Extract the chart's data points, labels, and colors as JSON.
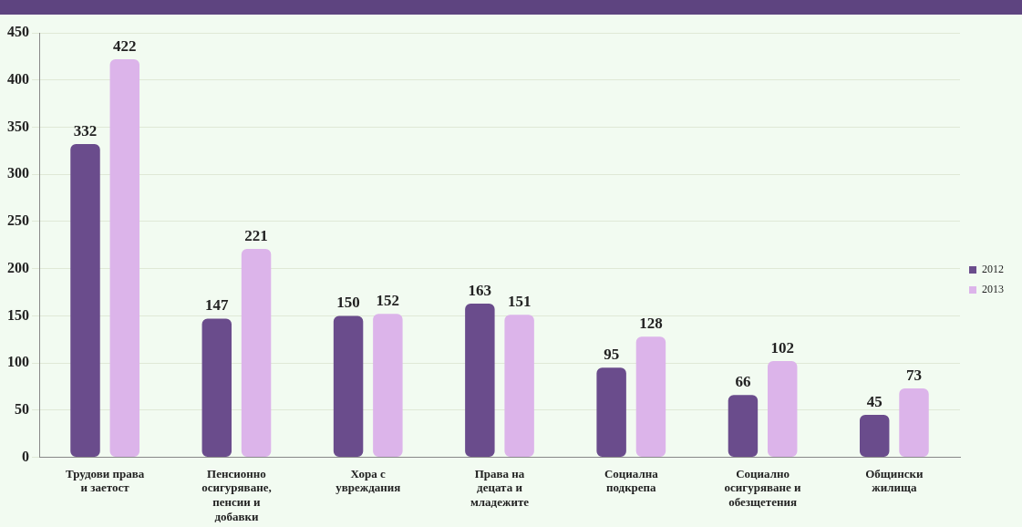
{
  "chart_data": {
    "type": "bar",
    "categories": [
      "Трудови права и заетост",
      "Пенсионно осигуряване, пенсии и добавки",
      "Хора с увреждания",
      "Права на децата и младежите",
      "Социална подкрепа",
      "Социално осигуряване и обезщетения",
      "Общински жилища"
    ],
    "series": [
      {
        "name": "2012",
        "color": "#6a4c8c",
        "values": [
          332,
          147,
          150,
          163,
          95,
          66,
          45
        ]
      },
      {
        "name": "2013",
        "color": "#dcb4ea",
        "values": [
          422,
          221,
          152,
          151,
          128,
          102,
          73
        ]
      }
    ],
    "ylim": [
      0,
      450
    ],
    "yticks": [
      0,
      50,
      100,
      150,
      200,
      250,
      300,
      350,
      400,
      450
    ],
    "grid": "y",
    "legend": "right",
    "data_labels": true
  }
}
